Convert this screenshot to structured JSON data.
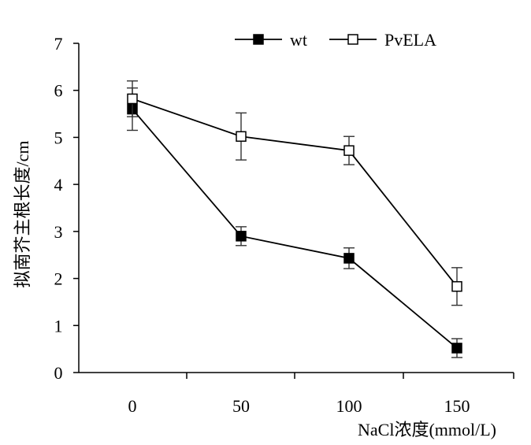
{
  "chart_data": {
    "type": "line",
    "x": [
      0,
      50,
      100,
      150
    ],
    "series": [
      {
        "name": "wt",
        "marker": "filled-square",
        "color": "#000000",
        "values": [
          5.6,
          2.9,
          2.43,
          0.52
        ],
        "errors": [
          0.45,
          0.2,
          0.22,
          0.2
        ]
      },
      {
        "name": "PvELA",
        "marker": "open-square",
        "color": "#000000",
        "values": [
          5.82,
          5.02,
          4.72,
          1.83
        ],
        "errors": [
          0.38,
          0.5,
          0.3,
          0.4
        ]
      }
    ],
    "xlabel": "NaCl浓度(mmol/L)",
    "ylabel": "拟南芥主根长度/cm",
    "ylim": [
      0,
      7
    ],
    "yticks": [
      0,
      1,
      2,
      3,
      4,
      5,
      6,
      7
    ],
    "xtick_labels": [
      "0",
      "50",
      "100",
      "150"
    ],
    "legend_position": "top-right",
    "grid": false
  }
}
